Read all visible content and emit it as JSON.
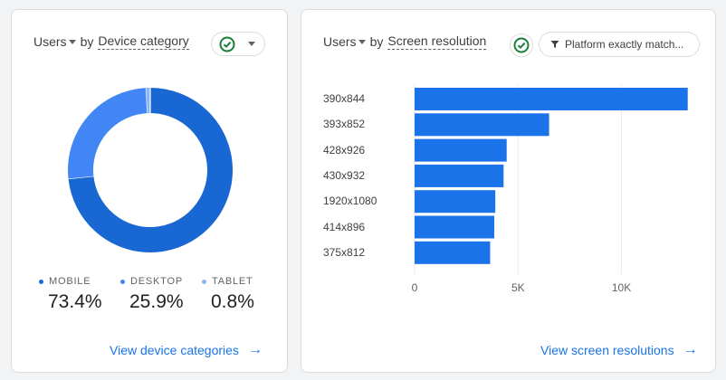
{
  "device_card": {
    "metric_label": "Users",
    "by_label": "by",
    "dimension_label": "Device category",
    "legend": [
      {
        "name": "MOBILE",
        "value": "73.4%",
        "share": 73.4,
        "color": "#1967d2"
      },
      {
        "name": "DESKTOP",
        "value": "25.9%",
        "share": 25.9,
        "color": "#4285f4"
      },
      {
        "name": "TABLET",
        "value": "0.8%",
        "share": 0.8,
        "color": "#8ab4f8"
      }
    ],
    "link_label": "View device categories",
    "link_icon": "arrow-right-icon"
  },
  "resolution_card": {
    "metric_label": "Users",
    "by_label": "by",
    "dimension_label": "Screen resolution",
    "filter_label": "Platform exactly match...",
    "filter_icon": "filter-icon",
    "link_label": "View screen resolutions",
    "link_icon": "arrow-right-icon"
  },
  "chart_data": [
    {
      "type": "pie",
      "categories": [
        "MOBILE",
        "DESKTOP",
        "TABLET"
      ],
      "values": [
        73.4,
        25.9,
        0.8
      ],
      "title": "",
      "legend": "bottom"
    },
    {
      "type": "bar",
      "orientation": "horizontal",
      "categories": [
        "390x844",
        "393x852",
        "428x926",
        "430x932",
        "1920x1080",
        "414x896",
        "375x812"
      ],
      "values": [
        13200,
        6500,
        4450,
        4300,
        3900,
        3850,
        3650
      ],
      "xticks": [
        "0",
        "5K",
        "10K"
      ],
      "xlim": [
        0,
        14000
      ],
      "grid": true,
      "colors": {
        "bar": "#1a73e8",
        "grid": "#e8eaed"
      }
    }
  ]
}
